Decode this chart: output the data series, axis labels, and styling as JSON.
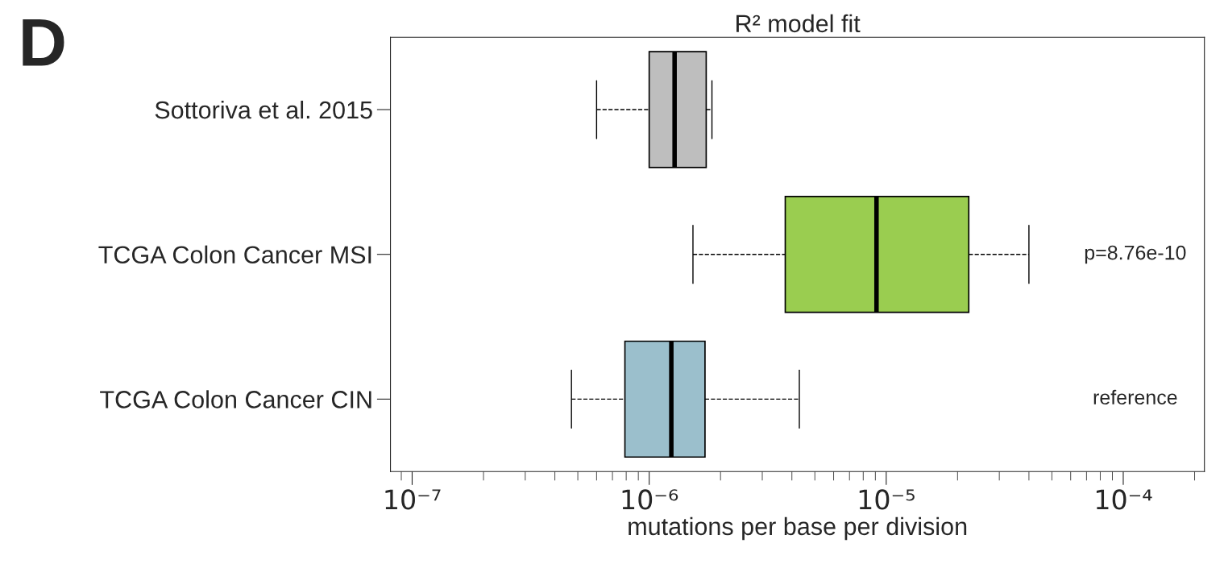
{
  "chart_data": {
    "type": "box",
    "orientation": "horizontal",
    "title": "R² model fit",
    "xlabel": "mutations per base per division",
    "categories": [
      "Sottoriva et al. 2015",
      "TCGA Colon Cancer MSI",
      "TCGA Colon Cancer CIN"
    ],
    "boxes": [
      {
        "low": 6e-07,
        "q1": 1e-06,
        "median": 1.28e-06,
        "q3": 1.74e-06,
        "high": 1.84e-06
      },
      {
        "low": 1.53e-06,
        "q1": 3.75e-06,
        "median": 9.1e-06,
        "q3": 2.23e-05,
        "high": 4e-05
      },
      {
        "low": 4.7e-07,
        "q1": 7.9e-07,
        "median": 1.24e-06,
        "q3": 1.72e-06,
        "high": 4.3e-06
      }
    ],
    "colors": [
      "#bebebe",
      "#9acd50",
      "#9bbfcc"
    ],
    "log": "x",
    "xlim": [
      8.1e-08,
      0.00022
    ],
    "xticks": [
      {
        "value": 1e-07,
        "label": "10⁻⁷"
      },
      {
        "value": 1e-06,
        "label": "10⁻⁶"
      },
      {
        "value": 1e-05,
        "label": "10⁻⁵"
      },
      {
        "value": 0.0001,
        "label": "10⁻⁴"
      }
    ],
    "line_style": "dashed",
    "grid": false,
    "annotations": [
      "D",
      "p=8.76e-10",
      "reference"
    ]
  }
}
